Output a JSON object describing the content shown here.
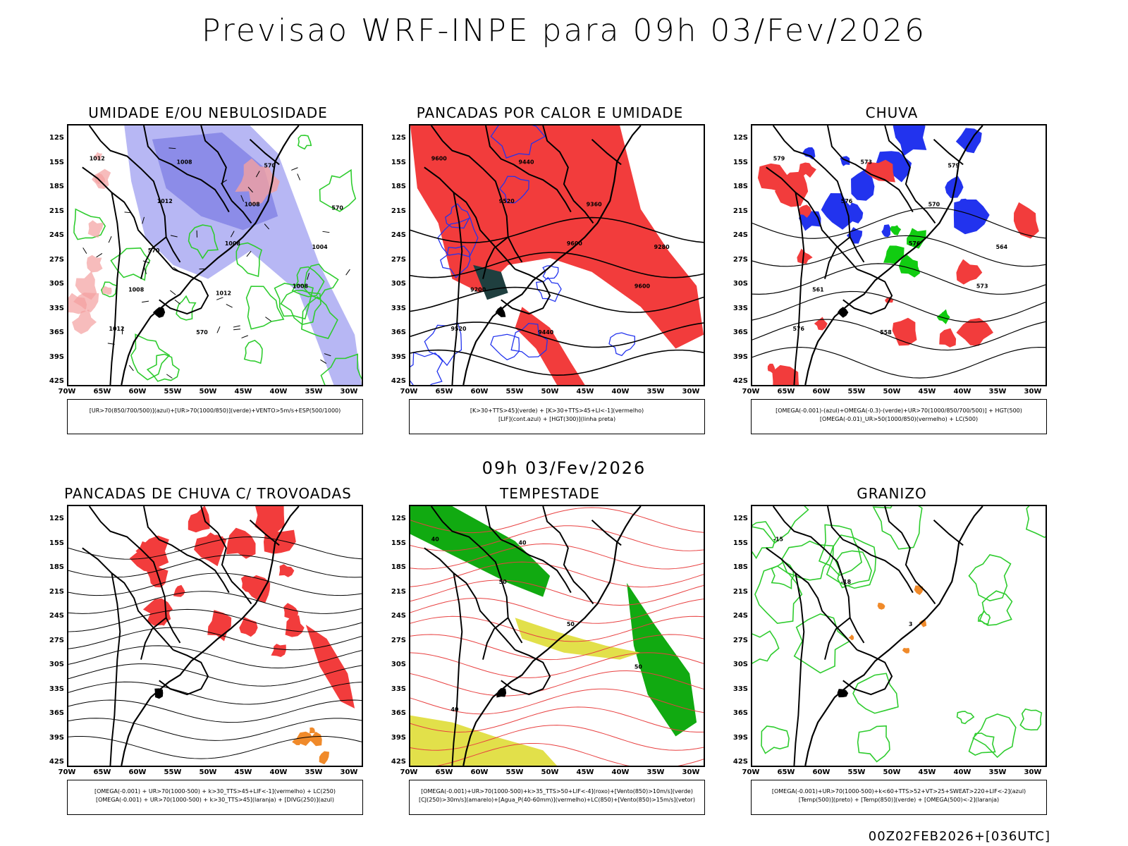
{
  "title": "Previsao WRF-INPE  para 09h 03/Fev/2026",
  "mid_title": "09h 03/Fev/2026",
  "footer": "00Z02FEB2026+[036UTC]",
  "axes": {
    "lat_labels": [
      "12S",
      "15S",
      "18S",
      "21S",
      "24S",
      "27S",
      "30S",
      "33S",
      "36S",
      "39S",
      "42S"
    ],
    "lon_labels": [
      "70W",
      "65W",
      "60W",
      "55W",
      "50W",
      "45W",
      "40W",
      "35W",
      "30W"
    ]
  },
  "panels": [
    {
      "id": "umidade",
      "title": "UMIDADE E/OU NEBULOSIDADE",
      "legend": [
        "[UR>70(850/700/500)](azul)+[UR>70(1000/850)](verde)+VENTO>5m/s+ESP(500/1000)"
      ],
      "contour_labels": [
        "1012",
        "1012",
        "1008",
        "1008",
        "1012",
        "1008",
        "1008",
        "1004",
        "1008",
        "570",
        "570",
        "570",
        "570",
        "1012"
      ]
    },
    {
      "id": "pancadas-calor",
      "title": "PANCADAS POR CALOR E UMIDADE",
      "legend": [
        "[K>30+TTS>45](verde)  +  [K>30+TTS>45+LI<-1](vermelho)",
        "[LIF](cont.azul)  +  [HGT(300)](linha preta)"
      ],
      "contour_labels": [
        "9600",
        "9520",
        "9600",
        "9600",
        "9520",
        "9440",
        "9360",
        "9280",
        "9200",
        "9440"
      ]
    },
    {
      "id": "chuva",
      "title": "CHUVA",
      "legend": [
        "[OMEGA(-0.001)-(azul)+OMEGA(-0.3)-(verde)+UR>70(1000/850/700/500)]  +  HGT(500)",
        "[OMEGA(-0.01)_UR>50(1000/850)(vermelho)  +  LC(500)"
      ],
      "contour_labels": [
        "579",
        "576",
        "576",
        "573",
        "576",
        "573",
        "570",
        "564",
        "561",
        "558",
        "579"
      ]
    },
    {
      "id": "pancadas-trovoadas",
      "title": "PANCADAS DE CHUVA C/ TROVOADAS",
      "legend": [
        "[OMEGA(-0.001)  +  UR>70(1000-500)  +  k>30_TTS>45+LIF<-1](vermelho)  +  LC(250)",
        "[OMEGA(-0.001)  +  UR>70(1000-500)  +  k>30_TTS>45](laranja)  +  [DIVG(250)](azul)"
      ],
      "contour_labels": []
    },
    {
      "id": "tempestade",
      "title": "TEMPESTADE",
      "legend": [
        "[OMEGA(-0.001)+UR>70(1000-500)+k>35_TTS>50+LIF<-4](roxo)+[Vento(850)>10m/s](verde)",
        "[CJ(250)>30m/s](amarelo)+[Agua_P(40-60mm)](vermelho)+LC(850)+[Vento(850)>15m/s](vetor)"
      ],
      "contour_labels": [
        "40",
        "50",
        "50",
        "50",
        "40",
        "40"
      ]
    },
    {
      "id": "granizo",
      "title": "GRANIZO",
      "legend": [
        "[OMEGA(-0.001)+UR>70(1000-500)+k<60+TTS>52+VT>25+SWEAT>220+LIF<-2](azul)",
        "[Temp(500)](preto)  +  [Temp(850)](verde)  +  [OMEGA(500)<-2](laranja)"
      ],
      "contour_labels": [
        "-15",
        "-18",
        "3"
      ]
    }
  ]
}
